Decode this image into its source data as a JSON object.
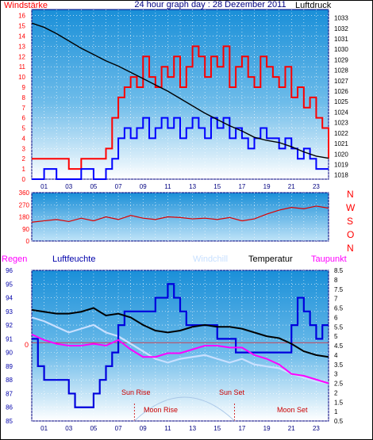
{
  "header": {
    "left_label": "Windstärke",
    "title": "24 hour graph day : 28 Dezember 2011",
    "right_label": "Luftdruck"
  },
  "compass": [
    "N",
    "W",
    "S",
    "O",
    "N"
  ],
  "legend": {
    "regen": "Regen",
    "luftfeuchte": "Luftfeuchte",
    "windchill": "Windchill",
    "temperatur": "Temperatur",
    "taupunkt": "Taupunkt"
  },
  "annotations": {
    "sun_rise": "Sun Rise",
    "sun_set": "Sun Set",
    "moon_rise": "Moon Rise",
    "moon_set": "Moon Set",
    "zero": "0"
  },
  "colors": {
    "wind_gust": "#ff0000",
    "wind_avg": "#0000ff",
    "pressure": "#000000",
    "direction": "#dd0000",
    "humidity": "#0000dd",
    "temperature": "#000000",
    "dewpoint": "#ff00ff",
    "windchill": "#c8e0ff",
    "title": "#000080",
    "accent_red": "#ff0000"
  },
  "chart_data": [
    {
      "type": "line",
      "name": "wind-pressure",
      "x_ticks": [
        "01",
        "03",
        "05",
        "07",
        "09",
        "11",
        "13",
        "15",
        "17",
        "19",
        "21",
        "23"
      ],
      "x_range_hours": [
        0,
        24
      ],
      "y_left_ticks": [
        "0",
        "1",
        "2",
        "3",
        "4",
        "5",
        "6",
        "7",
        "8",
        "9",
        "10",
        "11",
        "12",
        "13",
        "14",
        "15",
        "16"
      ],
      "y_left_range": [
        0,
        16.6
      ],
      "y_right_ticks": [
        "1018",
        "1019",
        "1020",
        "1021",
        "1022",
        "1023",
        "1024",
        "1025",
        "1026",
        "1027",
        "1028",
        "1029",
        "1030",
        "1031",
        "1032",
        "1033"
      ],
      "y_right_range": [
        1017.6,
        1033.8
      ],
      "series": [
        {
          "key": "gust",
          "x": [
            0,
            1,
            2,
            3,
            4,
            5,
            6,
            6.5,
            7,
            7.5,
            8,
            8.5,
            9,
            9.5,
            10,
            10.5,
            11,
            11.5,
            12,
            12.5,
            13,
            13.5,
            14,
            14.5,
            15,
            15.5,
            16,
            16.5,
            17,
            17.5,
            18,
            18.5,
            19,
            19.5,
            20,
            20.5,
            21,
            21.5,
            22,
            22.5,
            23,
            23.5,
            24
          ],
          "values": [
            2,
            2,
            2,
            1,
            2,
            2,
            3,
            6,
            8,
            9,
            10,
            9,
            12,
            10,
            9,
            11,
            10,
            12,
            9,
            11,
            13,
            12,
            10,
            12,
            11,
            13,
            9,
            11,
            12,
            10,
            9,
            12,
            11,
            10,
            9,
            11,
            8,
            9,
            7,
            8,
            6,
            5,
            2
          ]
        },
        {
          "key": "average",
          "x": [
            0,
            1,
            2,
            3,
            4,
            5,
            6,
            6.5,
            7,
            7.5,
            8,
            8.5,
            9,
            9.5,
            10,
            10.5,
            11,
            11.5,
            12,
            12.5,
            13,
            13.5,
            14,
            14.5,
            15,
            15.5,
            16,
            16.5,
            17,
            17.5,
            18,
            18.5,
            19,
            19.5,
            20,
            20.5,
            21,
            21.5,
            22,
            22.5,
            23,
            23.5,
            24
          ],
          "values": [
            0,
            1,
            0,
            0,
            1,
            0,
            1,
            2,
            4,
            5,
            4,
            5,
            6,
            4,
            5,
            6,
            5,
            6,
            4,
            5,
            6,
            5,
            4,
            6,
            5,
            6,
            4,
            5,
            4,
            3,
            4,
            5,
            4,
            4,
            3,
            4,
            3,
            2,
            3,
            2,
            1,
            1,
            1
          ]
        },
        {
          "key": "pressure",
          "x": [
            0,
            1,
            2,
            3,
            4,
            5,
            6,
            7,
            8,
            9,
            10,
            11,
            12,
            13,
            14,
            15,
            16,
            17,
            18,
            19,
            20,
            21,
            22,
            23,
            24
          ],
          "values": [
            1032.5,
            1032.1,
            1031.5,
            1030.8,
            1030.1,
            1029.5,
            1028.9,
            1028.4,
            1027.8,
            1027.2,
            1026.6,
            1026.0,
            1025.3,
            1024.6,
            1023.9,
            1023.3,
            1022.7,
            1022.2,
            1021.6,
            1021.3,
            1021.1,
            1020.7,
            1020.2,
            1019.8,
            1019.6
          ]
        }
      ]
    },
    {
      "type": "line",
      "name": "wind-direction",
      "x_ticks": [],
      "x_range_hours": [
        0,
        24
      ],
      "y_left_ticks": [
        "0",
        "90",
        "180",
        "270",
        "360"
      ],
      "y_range": [
        0,
        360
      ],
      "series": [
        {
          "key": "direction",
          "x": [
            0,
            1,
            2,
            3,
            4,
            5,
            6,
            7,
            8,
            9,
            10,
            11,
            12,
            13,
            14,
            15,
            16,
            17,
            18,
            19,
            20,
            21,
            22,
            23,
            24
          ],
          "values": [
            140,
            150,
            160,
            145,
            170,
            150,
            180,
            160,
            190,
            170,
            160,
            180,
            175,
            165,
            170,
            160,
            175,
            150,
            165,
            200,
            230,
            250,
            240,
            260,
            245
          ]
        }
      ]
    },
    {
      "type": "line",
      "name": "temperature-humidity",
      "x_ticks": [
        "01",
        "03",
        "05",
        "07",
        "09",
        "11",
        "13",
        "15",
        "17",
        "19",
        "21",
        "23"
      ],
      "x_range_hours": [
        0,
        24
      ],
      "y_left_ticks": [
        "85",
        "86",
        "87",
        "88",
        "89",
        "90",
        "91",
        "92",
        "93",
        "94",
        "95",
        "96"
      ],
      "y_left_range": [
        85,
        96
      ],
      "y_right_ticks": [
        "0.5",
        "1",
        "1.5",
        "2",
        "2.5",
        "3",
        "3.5",
        "4",
        "4.5",
        "5",
        "5.5",
        "6",
        "6.5",
        "7",
        "7.5",
        "8",
        "8.5"
      ],
      "y_right_range": [
        0.5,
        8.5
      ],
      "series": [
        {
          "key": "humidity",
          "x": [
            0,
            0.5,
            1,
            2,
            3,
            3.5,
            4,
            5,
            5.5,
            6,
            6.5,
            7,
            7.5,
            8,
            9,
            10,
            11,
            11.5,
            12,
            12.5,
            13,
            14,
            15,
            16,
            16.5,
            17,
            18,
            19,
            20,
            21,
            21.5,
            22,
            22.5,
            23,
            23.5,
            24
          ],
          "values": [
            91,
            89,
            88,
            88,
            87,
            86,
            86,
            87,
            88,
            89,
            90,
            92,
            93,
            93,
            93,
            94,
            95,
            94,
            93,
            92,
            92,
            92,
            91,
            91,
            90,
            90,
            90,
            90,
            90,
            92,
            94,
            93,
            92,
            91,
            92,
            92
          ]
        },
        {
          "key": "temperature",
          "x": [
            0,
            1,
            2,
            3,
            4,
            5,
            6,
            7,
            8,
            9,
            10,
            11,
            12,
            13,
            14,
            15,
            16,
            17,
            18,
            19,
            20,
            21,
            22,
            23,
            24
          ],
          "values": [
            6.4,
            6.3,
            6.2,
            6.2,
            6.3,
            6.5,
            6.1,
            6.2,
            6.0,
            5.6,
            5.3,
            5.2,
            5.3,
            5.5,
            5.6,
            5.5,
            5.5,
            5.4,
            5.2,
            5.0,
            4.9,
            4.6,
            4.2,
            4.0,
            3.9
          ]
        },
        {
          "key": "dewpoint",
          "x": [
            0,
            1,
            2,
            3,
            4,
            5,
            6,
            7,
            8,
            9,
            10,
            11,
            12,
            13,
            14,
            15,
            16,
            17,
            18,
            19,
            20,
            21,
            22,
            23,
            24
          ],
          "values": [
            5.1,
            4.8,
            4.6,
            4.5,
            4.5,
            4.6,
            4.5,
            4.8,
            4.3,
            3.9,
            3.9,
            4.1,
            4.1,
            4.3,
            4.5,
            4.5,
            4.4,
            4.4,
            4.0,
            3.8,
            3.5,
            3.0,
            2.9,
            2.7,
            2.5
          ]
        },
        {
          "key": "windchill",
          "x": [
            0,
            1,
            2,
            3,
            4,
            5,
            6,
            7,
            8,
            9,
            10,
            11,
            12,
            13,
            14,
            15,
            16,
            17,
            18,
            19,
            20,
            21,
            22,
            23,
            24
          ],
          "values": [
            6.0,
            5.8,
            5.5,
            5.2,
            5.4,
            5.6,
            5.2,
            5.0,
            4.6,
            4.2,
            3.8,
            3.6,
            3.8,
            3.9,
            4.0,
            3.8,
            3.6,
            3.8,
            3.5,
            3.4,
            3.3,
            3.0,
            2.8,
            2.6,
            2.5
          ]
        }
      ],
      "sun_rise_hour": 8.3,
      "sun_set_hour": 16.4
    }
  ]
}
